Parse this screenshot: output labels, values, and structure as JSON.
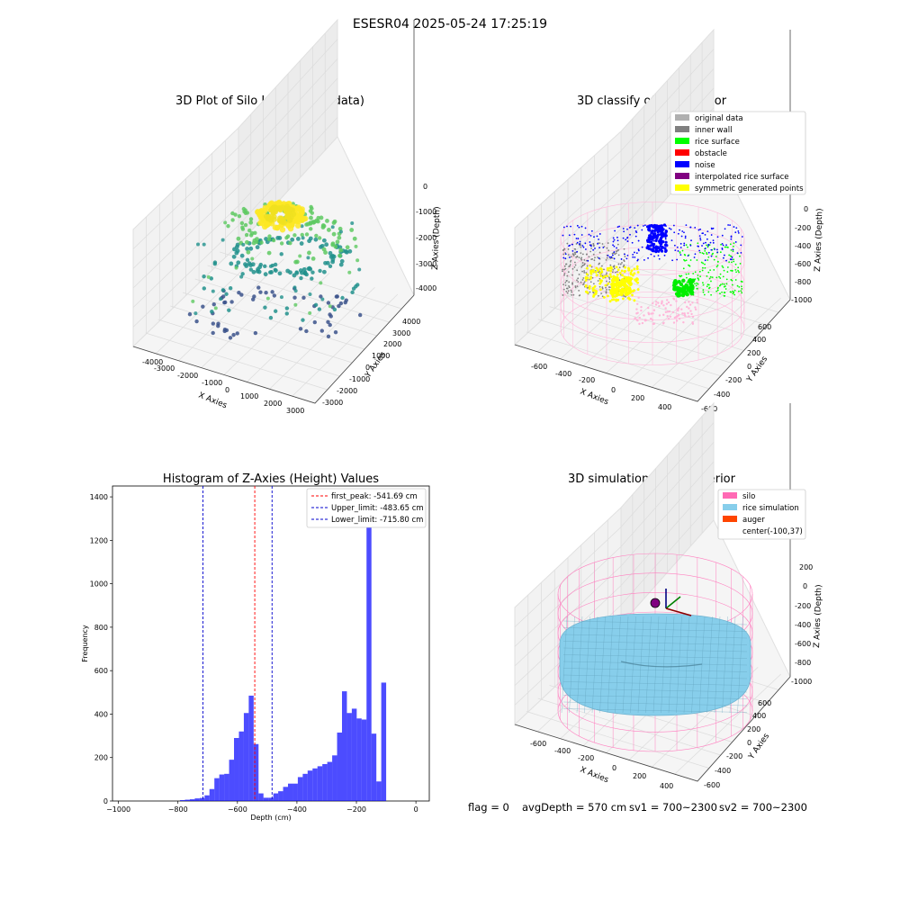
{
  "figure": {
    "suptitle": "ESESR04 2025-05-24 17:25:19",
    "status_line": {
      "flag": "flag = 0",
      "avg_depth": "avgDepth = 570 cm",
      "sv1": "sv1 = 700~2300",
      "sv2": "sv2 = 700~2300"
    }
  },
  "chart_data": [
    {
      "id": "raw",
      "type": "scatter3d",
      "title": "3D Plot of Silo Interior(row data)",
      "xlabel": "X Axies",
      "ylabel": "Y Axies",
      "zlabel": "Z Axies (Depth)",
      "xticks": [
        "-4000",
        "-3000",
        "-2000",
        "-1000",
        "0",
        "1000",
        "2000",
        "3000"
      ],
      "yticks": [
        "-3000",
        "-2000",
        "-1000",
        "0",
        "1000",
        "2000",
        "3000",
        "4000"
      ],
      "zticks": [
        "0",
        "-1000",
        "-2000",
        "-3000",
        "-4000"
      ],
      "colormap": [
        "#440154",
        "#3b528b",
        "#21918c",
        "#5ec962",
        "#fde725"
      ]
    },
    {
      "id": "classify",
      "type": "scatter3d",
      "title": "3D classify of Silo Interior",
      "xlabel": "X Axies",
      "ylabel": "Y Axies",
      "zlabel": "Z Axies (Depth)",
      "xticks": [
        "-600",
        "-400",
        "-200",
        "0",
        "200",
        "400"
      ],
      "yticks": [
        "-600",
        "-400",
        "-200",
        "0",
        "200",
        "400",
        "600"
      ],
      "zticks": [
        "0",
        "-200",
        "-400",
        "-600",
        "-800",
        "-1000"
      ],
      "legend": [
        {
          "label": "original data",
          "color": "#b0b0b0"
        },
        {
          "label": "inner wall",
          "color": "#808080"
        },
        {
          "label": "rice surface",
          "color": "#00ff00"
        },
        {
          "label": "obstacle",
          "color": "#ff0000"
        },
        {
          "label": "noise",
          "color": "#0000ff"
        },
        {
          "label": "interpolated rice surface",
          "color": "#800080"
        },
        {
          "label": "symmetric generated points",
          "color": "#ffff00"
        }
      ],
      "legend_position": "top-right"
    },
    {
      "id": "hist",
      "type": "bar",
      "title": "Histogram of Z-Axies (Height) Values",
      "xlabel": "Depth (cm)",
      "ylabel": "Frequency",
      "xlim": [
        -1000,
        0
      ],
      "ylim": [
        0,
        1450
      ],
      "xticks": [
        -1000,
        -800,
        -600,
        -400,
        -200,
        0
      ],
      "yticks": [
        0,
        200,
        400,
        600,
        800,
        1000,
        1200,
        1400
      ],
      "bin_width": 16.5,
      "bins_start": [
        -793,
        -776.5,
        -760,
        -743.5,
        -727,
        -710.5,
        -694,
        -677.5,
        -661,
        -644.5,
        -628,
        -611.5,
        -595,
        -578.5,
        -562,
        -545.5,
        -529,
        -512.5,
        -496,
        -479.5,
        -463,
        -446.5,
        -430,
        -413.5,
        -397,
        -380.5,
        -364,
        -347.5,
        -331,
        -314.5,
        -298,
        -281.5,
        -265,
        -248.5,
        -232,
        -215.5,
        -199,
        -182.5,
        -166,
        -149.5,
        -133,
        -116.5,
        -100,
        -83.5,
        -67,
        -50.5,
        -34,
        -17.5
      ],
      "counts": [
        4,
        6,
        8,
        12,
        14,
        26,
        55,
        105,
        122,
        125,
        190,
        290,
        320,
        405,
        485,
        262,
        35,
        15,
        15,
        35,
        45,
        65,
        80,
        80,
        110,
        125,
        140,
        150,
        160,
        170,
        180,
        210,
        315,
        505,
        405,
        425,
        380,
        375,
        1375,
        310,
        90,
        545,
        0,
        0,
        0,
        0,
        0,
        0
      ],
      "color": "#0000ff",
      "vlines": [
        {
          "label": "first_peak: -541.69 cm",
          "x": -541.69,
          "color": "#ff0000"
        },
        {
          "label": "Upper_limit: -483.65 cm",
          "x": -483.65,
          "color": "#0000cd"
        },
        {
          "label": "Lower_limit: -715.80 cm",
          "x": -715.8,
          "color": "#0000cd"
        }
      ],
      "legend_position": "top-right"
    },
    {
      "id": "sim",
      "type": "surface3d",
      "title": "3D simulation of Silo Interior",
      "xlabel": "X Axies",
      "ylabel": "Y Axies",
      "zlabel": "Z Axies (Depth)",
      "xticks": [
        "-600",
        "-400",
        "-200",
        "0",
        "200",
        "400"
      ],
      "yticks": [
        "-600",
        "-400",
        "-200",
        "0",
        "200",
        "400",
        "600"
      ],
      "zticks": [
        "200",
        "0",
        "-200",
        "-400",
        "-600",
        "-800",
        "-1000"
      ],
      "legend": [
        {
          "label": "silo",
          "color": "#ff69b4"
        },
        {
          "label": "rice simulation",
          "color": "#87ceeb"
        },
        {
          "label": "auger",
          "color": "#ff4500"
        },
        {
          "label": "center(-100,37)",
          "color": "none"
        }
      ],
      "legend_position": "top-right"
    }
  ]
}
